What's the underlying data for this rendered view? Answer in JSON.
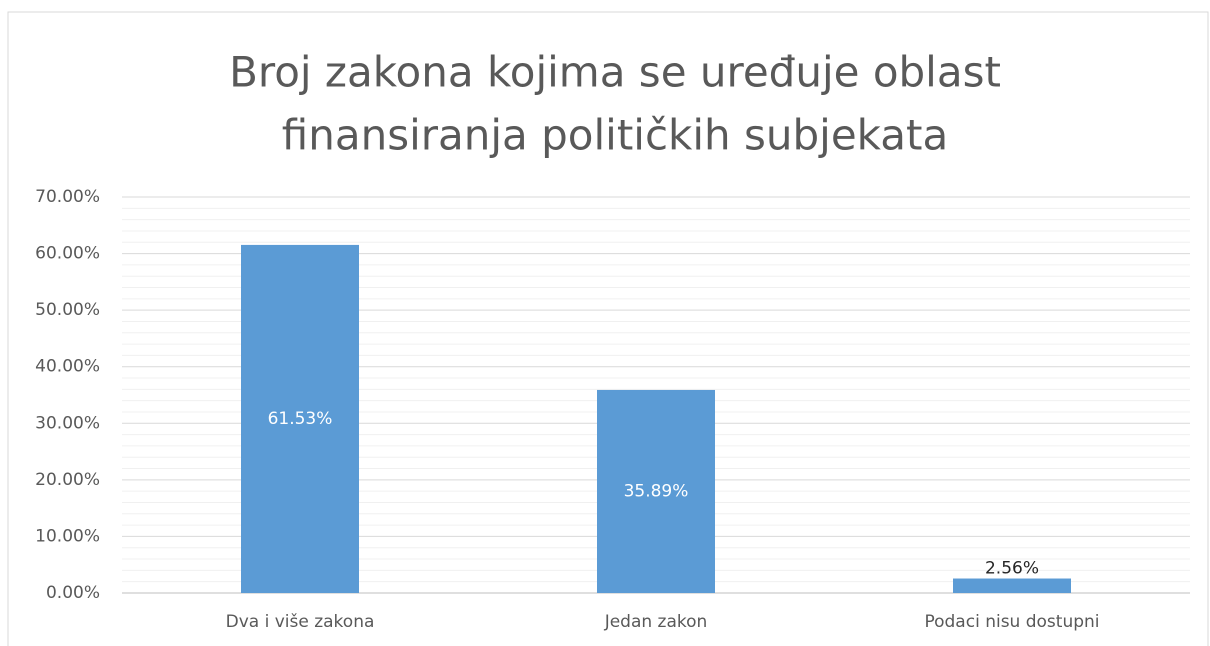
{
  "chart_data": {
    "type": "bar",
    "title": [
      "Broj zakona kojima se uređuje oblast",
      "finansiranja političkih subjekata"
    ],
    "categories": [
      "Dva i više zakona",
      "Jedan zakon",
      "Podaci nisu dostupni"
    ],
    "values": [
      61.53,
      35.89,
      2.56
    ],
    "value_labels": [
      "61.53%",
      "35.89%",
      "2.56%"
    ],
    "color": "#5b9bd5",
    "ylim": [
      0,
      70
    ],
    "yticks": [
      {
        "value": 0,
        "label": "0.00%"
      },
      {
        "value": 10,
        "label": "10.00%"
      },
      {
        "value": 20,
        "label": "20.00%"
      },
      {
        "value": 30,
        "label": "30.00%"
      },
      {
        "value": 40,
        "label": "40.00%"
      },
      {
        "value": 50,
        "label": "50.00%"
      },
      {
        "value": 60,
        "label": "60.00%"
      },
      {
        "value": 70,
        "label": "70.00%"
      }
    ],
    "minor_yticks": [
      2,
      4,
      6,
      8,
      12,
      14,
      16,
      18,
      22,
      24,
      26,
      28,
      32,
      34,
      36,
      38,
      42,
      44,
      46,
      48,
      52,
      54,
      56,
      58,
      62,
      64,
      66,
      68
    ],
    "grid": true
  }
}
